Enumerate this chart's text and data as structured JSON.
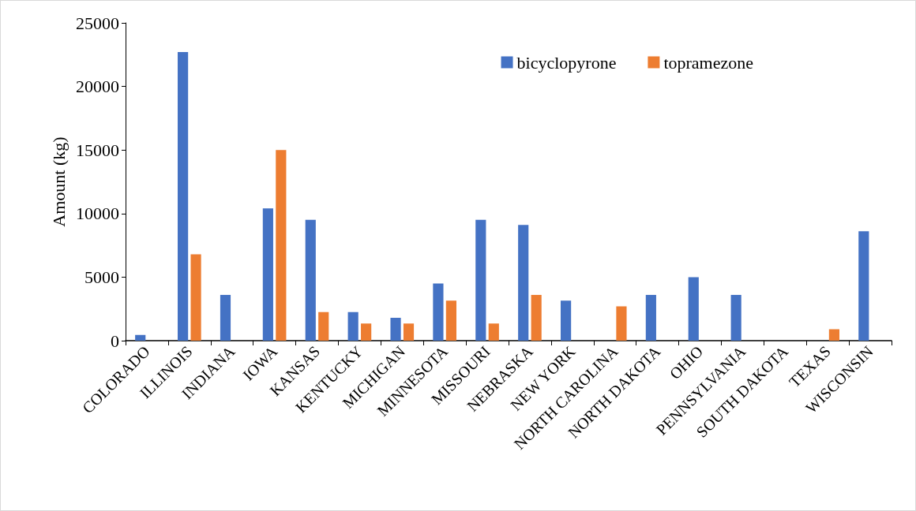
{
  "chart_data": {
    "type": "bar",
    "ylabel": "Amount (kg)",
    "categories": [
      "COLORADO",
      "ILLINOIS",
      "INDIANA",
      "IOWA",
      "KANSAS",
      "KENTUCKY",
      "MICHIGAN",
      "MINNESOTA",
      "MISSOURI",
      "NEBRASKA",
      "NEW YORK",
      "NORTH CAROLINA",
      "NORTH DAKOTA",
      "OHIO",
      "PENNSYLVANIA",
      "SOUTH DAKOTA",
      "TEXAS",
      "WISCONSIN"
    ],
    "series": [
      {
        "name": "bicyclopyrone",
        "color": "#4472c4",
        "values": [
          450,
          22700,
          3600,
          10400,
          9500,
          2250,
          1800,
          4500,
          9500,
          9100,
          3150,
          null,
          3600,
          5000,
          3600,
          null,
          null,
          8600
        ]
      },
      {
        "name": "topramezone",
        "color": "#ed7d31",
        "values": [
          null,
          6800,
          null,
          15000,
          2250,
          1350,
          1350,
          3150,
          1350,
          3600,
          null,
          2700,
          null,
          null,
          null,
          null,
          900,
          null
        ]
      }
    ],
    "ylim": [
      0,
      25000
    ],
    "yticks": [
      0,
      5000,
      10000,
      15000,
      20000,
      25000
    ],
    "grid": false,
    "legend": "top right"
  }
}
